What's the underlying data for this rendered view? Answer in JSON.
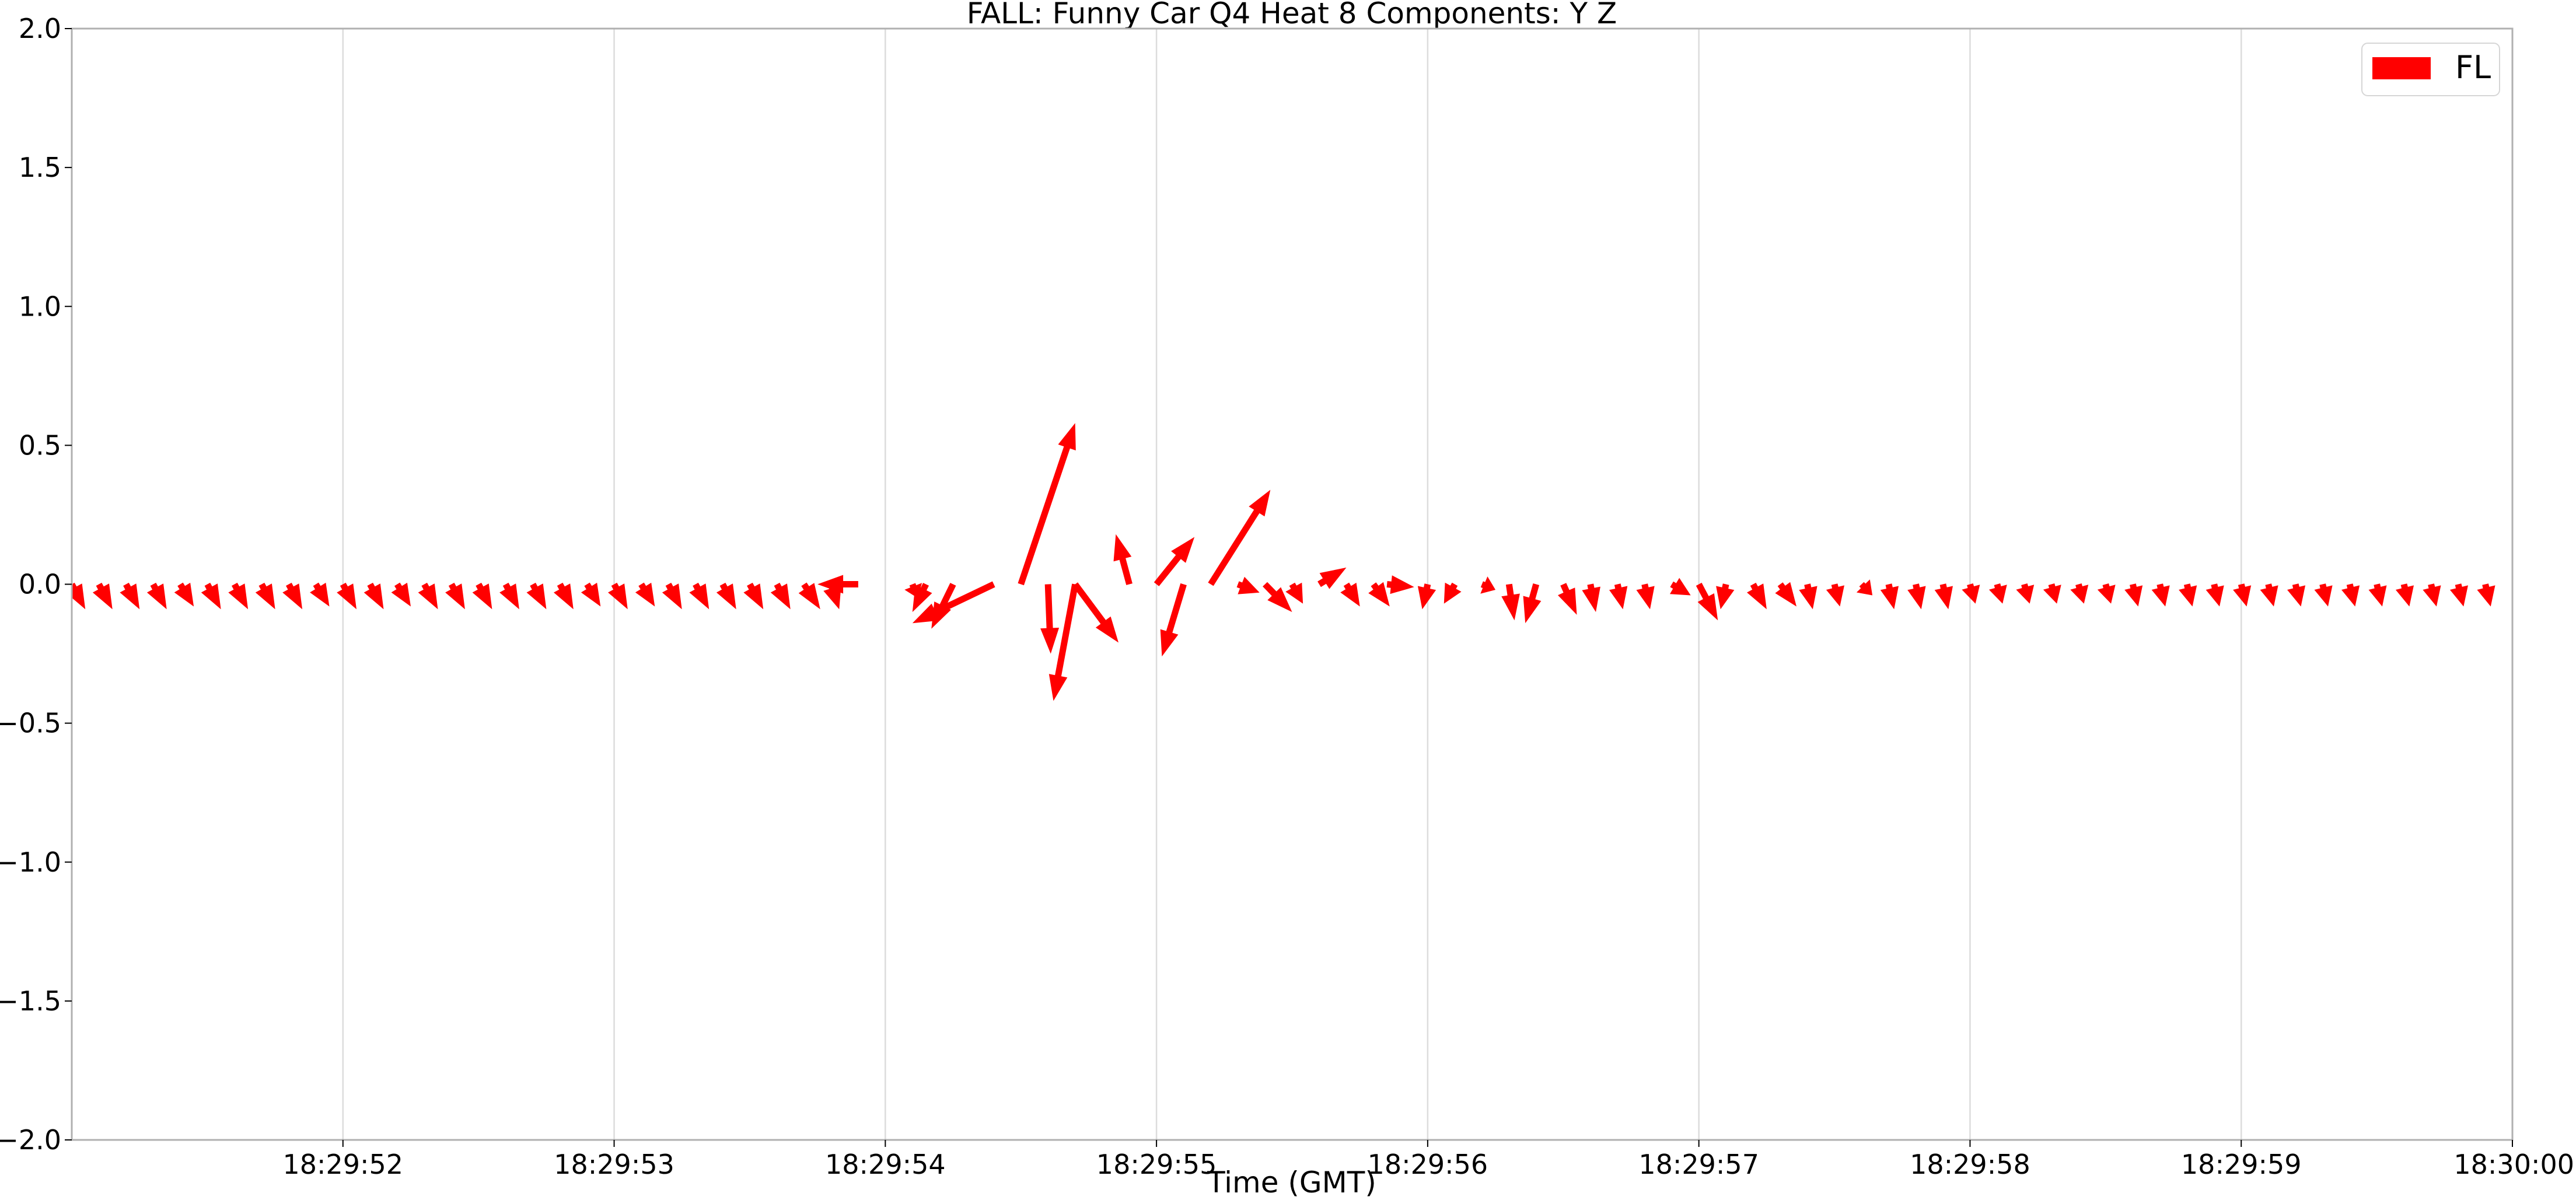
{
  "chart_data": {
    "type": "quiver",
    "title": "FALL: Funny Car Q4 Heat 8 Components: Y Z",
    "xlabel": "Time (GMT)",
    "ylabel": "",
    "ylim": [
      -2.0,
      2.0
    ],
    "yticks": [
      -2.0,
      -1.5,
      -1.0,
      -0.5,
      0.0,
      0.5,
      1.0,
      1.5,
      2.0
    ],
    "ytick_labels": [
      "−2.0",
      "−1.5",
      "−1.0",
      "−0.5",
      "0.0",
      "0.5",
      "1.0",
      "1.5",
      "2.0"
    ],
    "xlim": [
      "18:29:51.000",
      "18:30:00.000"
    ],
    "xticks": [
      "18:29:52",
      "18:29:53",
      "18:29:54",
      "18:29:55",
      "18:29:56",
      "18:29:57",
      "18:29:58",
      "18:29:59",
      "18:30:00"
    ],
    "grid": {
      "x": true,
      "y": false
    },
    "legend": {
      "position": "top-right",
      "entries": [
        "FL"
      ]
    },
    "series": [
      {
        "name": "FL",
        "color": "#ff0000",
        "columns": [
          "t",
          "dx",
          "dy"
        ],
        "data": [
          [
            "18:29:51.000",
            0.05,
            -0.09
          ],
          [
            "18:29:51.100",
            0.05,
            -0.09
          ],
          [
            "18:29:51.200",
            0.05,
            -0.09
          ],
          [
            "18:29:51.300",
            0.05,
            -0.09
          ],
          [
            "18:29:51.400",
            0.05,
            -0.08
          ],
          [
            "18:29:51.500",
            0.05,
            -0.09
          ],
          [
            "18:29:51.600",
            0.05,
            -0.09
          ],
          [
            "18:29:51.700",
            0.05,
            -0.09
          ],
          [
            "18:29:51.800",
            0.05,
            -0.09
          ],
          [
            "18:29:51.900",
            0.05,
            -0.08
          ],
          [
            "18:29:52.000",
            0.05,
            -0.09
          ],
          [
            "18:29:52.100",
            0.05,
            -0.09
          ],
          [
            "18:29:52.200",
            0.05,
            -0.08
          ],
          [
            "18:29:52.300",
            0.05,
            -0.09
          ],
          [
            "18:29:52.400",
            0.05,
            -0.09
          ],
          [
            "18:29:52.500",
            0.05,
            -0.09
          ],
          [
            "18:29:52.600",
            0.05,
            -0.09
          ],
          [
            "18:29:52.700",
            0.05,
            -0.09
          ],
          [
            "18:29:52.800",
            0.05,
            -0.09
          ],
          [
            "18:29:52.900",
            0.05,
            -0.08
          ],
          [
            "18:29:53.000",
            0.05,
            -0.09
          ],
          [
            "18:29:53.100",
            0.05,
            -0.08
          ],
          [
            "18:29:53.200",
            0.05,
            -0.09
          ],
          [
            "18:29:53.300",
            0.05,
            -0.09
          ],
          [
            "18:29:53.400",
            0.05,
            -0.09
          ],
          [
            "18:29:53.500",
            0.05,
            -0.09
          ],
          [
            "18:29:53.600",
            0.05,
            -0.09
          ],
          [
            "18:29:53.700",
            0.06,
            -0.09
          ],
          [
            "18:29:53.800",
            0.03,
            -0.09
          ],
          [
            "18:29:53.900",
            -0.15,
            0.0
          ],
          [
            "18:29:54.100",
            0.02,
            -0.05
          ],
          [
            "18:29:54.150",
            -0.05,
            -0.1
          ],
          [
            "18:29:54.250",
            -0.08,
            -0.16
          ],
          [
            "18:29:54.400",
            -0.3,
            -0.14
          ],
          [
            "18:29:54.500",
            0.2,
            0.58
          ],
          [
            "18:29:54.600",
            0.01,
            -0.25
          ],
          [
            "18:29:54.700",
            -0.08,
            -0.42
          ],
          [
            "18:29:54.700",
            0.16,
            -0.21
          ],
          [
            "18:29:54.900",
            -0.05,
            0.18
          ],
          [
            "18:29:55.000",
            0.14,
            0.17
          ],
          [
            "18:29:55.100",
            -0.08,
            -0.26
          ],
          [
            "18:29:55.200",
            0.22,
            0.34
          ],
          [
            "18:29:55.300",
            0.08,
            -0.03
          ],
          [
            "18:29:55.400",
            0.1,
            -0.1
          ],
          [
            "18:29:55.500",
            0.04,
            -0.07
          ],
          [
            "18:29:55.600",
            0.1,
            0.06
          ],
          [
            "18:29:55.700",
            0.05,
            -0.08
          ],
          [
            "18:29:55.800",
            0.06,
            -0.08
          ],
          [
            "18:29:55.850",
            0.1,
            -0.01
          ],
          [
            "18:29:56.000",
            -0.02,
            -0.09
          ],
          [
            "18:29:56.100",
            -0.04,
            -0.07
          ],
          [
            "18:29:56.200",
            0.05,
            -0.02
          ],
          [
            "18:29:56.300",
            0.02,
            -0.13
          ],
          [
            "18:29:56.400",
            -0.04,
            -0.14
          ],
          [
            "18:29:56.500",
            0.05,
            -0.11
          ],
          [
            "18:29:56.600",
            0.02,
            -0.1
          ],
          [
            "18:29:56.700",
            0.02,
            -0.09
          ],
          [
            "18:29:56.800",
            0.02,
            -0.09
          ],
          [
            "18:29:56.900",
            0.07,
            -0.04
          ],
          [
            "18:29:57.000",
            0.07,
            -0.13
          ],
          [
            "18:29:57.100",
            -0.02,
            -0.09
          ],
          [
            "18:29:57.200",
            0.05,
            -0.09
          ],
          [
            "18:29:57.300",
            0.06,
            -0.08
          ],
          [
            "18:29:57.400",
            0.02,
            -0.09
          ],
          [
            "18:29:57.500",
            0.02,
            -0.08
          ],
          [
            "18:29:57.600",
            0.04,
            -0.04
          ],
          [
            "18:29:57.700",
            0.02,
            -0.09
          ],
          [
            "18:29:57.800",
            0.02,
            -0.09
          ],
          [
            "18:29:57.900",
            0.02,
            -0.09
          ],
          [
            "18:29:58.000",
            0.02,
            -0.07
          ],
          [
            "18:29:58.100",
            0.02,
            -0.07
          ],
          [
            "18:29:58.200",
            0.02,
            -0.07
          ],
          [
            "18:29:58.300",
            0.02,
            -0.07
          ],
          [
            "18:29:58.400",
            0.02,
            -0.07
          ],
          [
            "18:29:58.500",
            0.02,
            -0.07
          ],
          [
            "18:29:58.600",
            0.02,
            -0.08
          ],
          [
            "18:29:58.700",
            0.02,
            -0.08
          ],
          [
            "18:29:58.800",
            0.02,
            -0.08
          ],
          [
            "18:29:58.900",
            0.02,
            -0.08
          ],
          [
            "18:29:59.000",
            0.02,
            -0.08
          ],
          [
            "18:29:59.100",
            0.02,
            -0.08
          ],
          [
            "18:29:59.200",
            0.02,
            -0.08
          ],
          [
            "18:29:59.300",
            0.02,
            -0.08
          ],
          [
            "18:29:59.400",
            0.02,
            -0.08
          ],
          [
            "18:29:59.500",
            0.02,
            -0.08
          ],
          [
            "18:29:59.600",
            0.02,
            -0.08
          ],
          [
            "18:29:59.700",
            0.02,
            -0.08
          ],
          [
            "18:29:59.800",
            0.02,
            -0.08
          ],
          [
            "18:29:59.900",
            0.02,
            -0.08
          ]
        ]
      }
    ]
  }
}
